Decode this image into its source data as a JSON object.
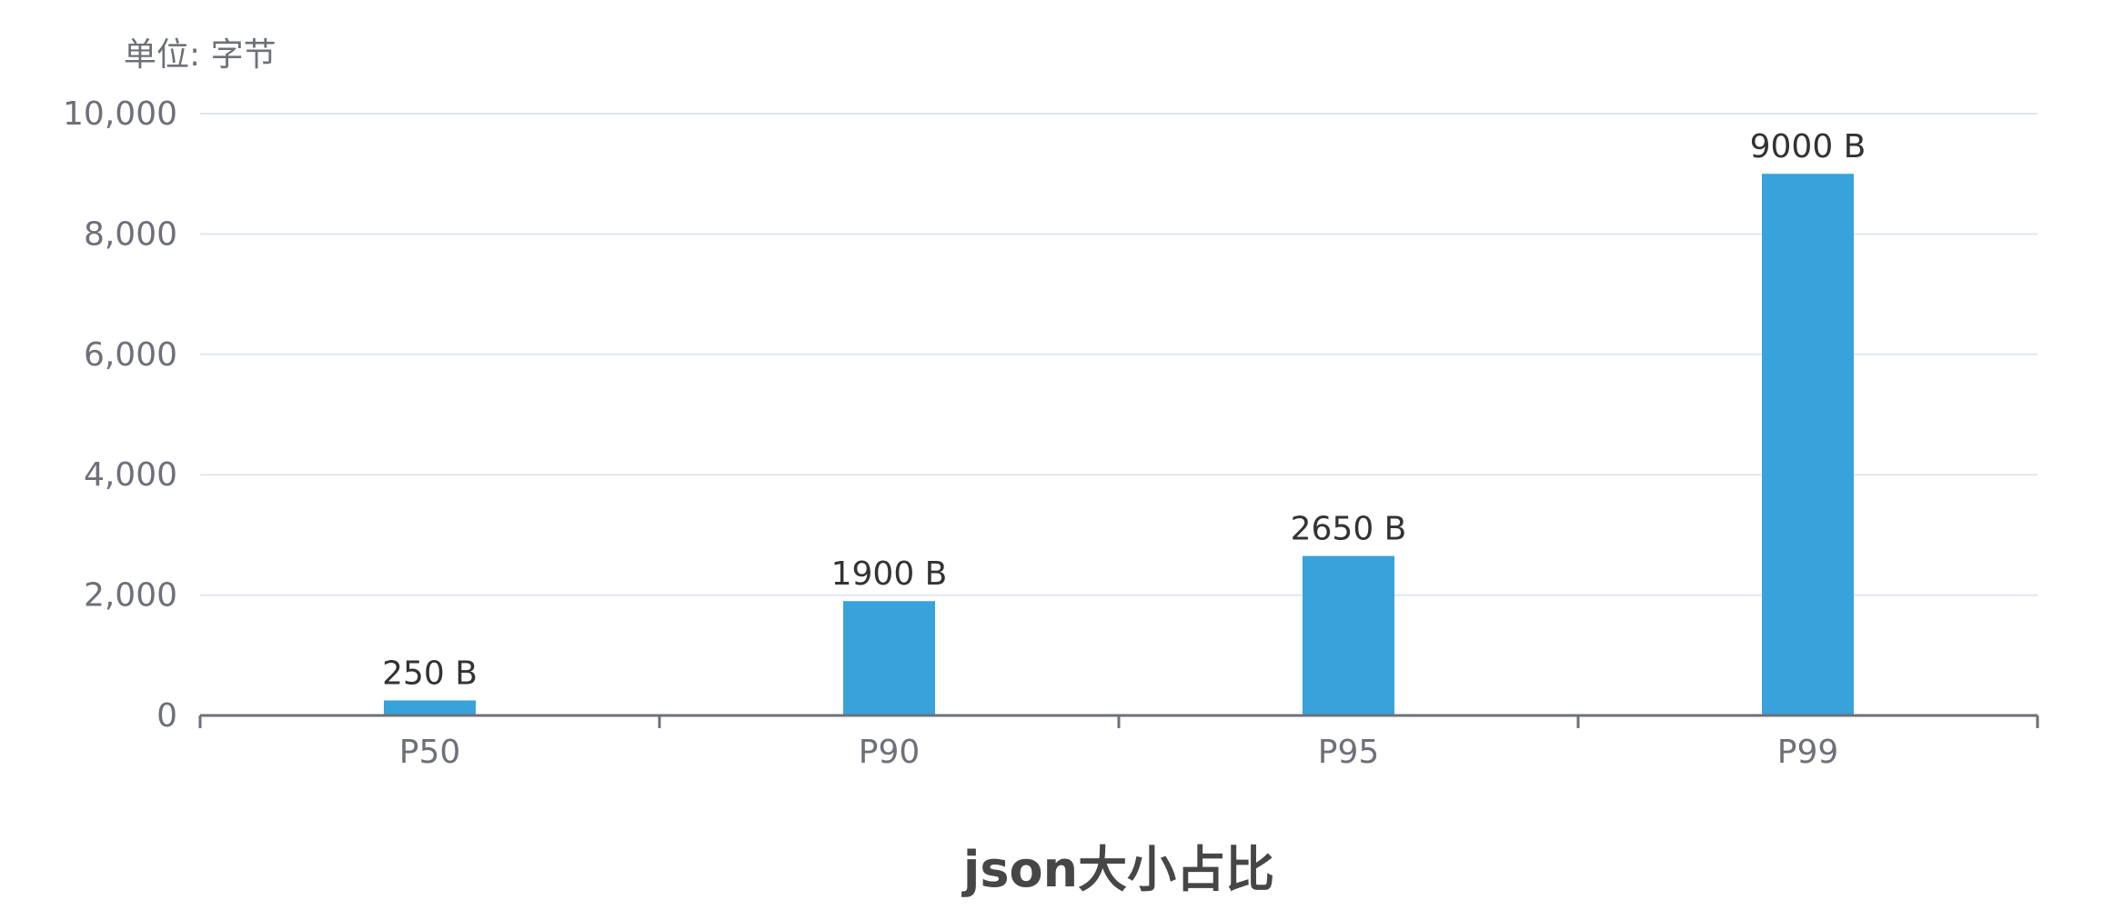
{
  "chart_data": {
    "type": "bar",
    "title": "json大小占比",
    "unit_label": "单位: 字节",
    "categories": [
      "P50",
      "P90",
      "P95",
      "P99"
    ],
    "values": [
      250,
      1900,
      2650,
      9000
    ],
    "data_labels": [
      "250 B",
      "1900 B",
      "2650 B",
      "9000 B"
    ],
    "ylim": [
      0,
      10000
    ],
    "y_ticks": [
      0,
      2000,
      4000,
      6000,
      8000,
      10000
    ],
    "y_tick_labels": [
      "0",
      "2,000",
      "4,000",
      "6,000",
      "8,000",
      "10,000"
    ],
    "xlabel": "",
    "ylabel": "",
    "grid": true,
    "colors": {
      "bar": "#38a2db",
      "grid": "#e0e6f1",
      "axis": "#6e7079",
      "data_label": "#333333",
      "title": "#464646"
    }
  }
}
